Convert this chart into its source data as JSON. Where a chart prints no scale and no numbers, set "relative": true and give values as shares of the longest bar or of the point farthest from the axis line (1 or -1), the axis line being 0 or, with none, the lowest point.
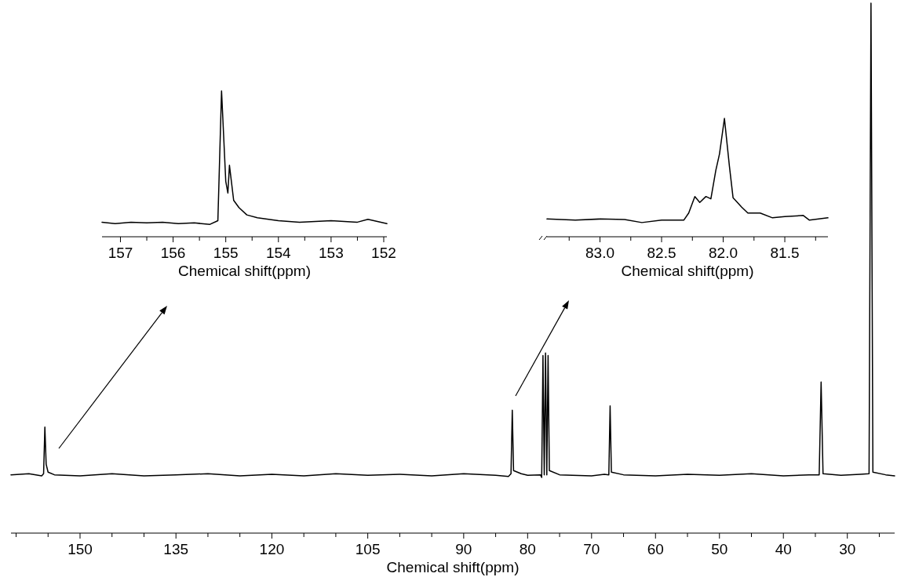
{
  "chart_data": [
    {
      "type": "line",
      "xlabel": "Chemical shift(ppm)",
      "relative": true,
      "tick_labels": "x",
      "x": [
        160.8,
        158,
        156,
        155.7,
        155.5,
        155.3,
        155,
        154,
        150,
        145,
        140,
        135,
        130,
        125,
        120,
        115,
        110,
        105,
        100,
        95,
        90,
        85,
        83,
        82.6,
        82.4,
        82.2,
        81,
        80,
        78,
        77.8,
        77.6,
        77.4,
        77.2,
        77.0,
        76.8,
        76.6,
        75,
        70,
        68,
        67.3,
        67.1,
        66.9,
        65,
        60,
        55,
        50,
        45,
        40,
        36,
        34.4,
        34.1,
        33.8,
        31,
        28,
        26.6,
        26.3,
        26.0,
        24,
        22.6
      ],
      "series": [
        {
          "color": "#000000",
          "values": [
            0.11,
            0.112,
            0.108,
            0.112,
            0.2,
            0.13,
            0.115,
            0.11,
            0.108,
            0.112,
            0.108,
            0.11,
            0.112,
            0.108,
            0.111,
            0.108,
            0.112,
            0.109,
            0.111,
            0.108,
            0.112,
            0.109,
            0.107,
            0.112,
            0.232,
            0.118,
            0.112,
            0.109,
            0.11,
            0.105,
            0.335,
            0.11,
            0.34,
            0.11,
            0.335,
            0.118,
            0.11,
            0.108,
            0.111,
            0.11,
            0.24,
            0.115,
            0.11,
            0.108,
            0.111,
            0.109,
            0.112,
            0.108,
            0.11,
            0.11,
            0.285,
            0.112,
            0.109,
            0.111,
            0.112,
            1,
            0.115,
            0.11,
            0.108
          ]
        }
      ],
      "xlim": [
        160.8,
        22.6
      ],
      "xticks": [
        {
          "value": 160,
          "label": null
        },
        {
          "value": 155,
          "label": null
        },
        150,
        {
          "value": 145,
          "label": null
        },
        {
          "value": 140,
          "label": null
        },
        135,
        {
          "value": 130,
          "label": null
        },
        {
          "value": 125,
          "label": null
        },
        120,
        {
          "value": 115,
          "label": null
        },
        {
          "value": 110,
          "label": null
        },
        105,
        {
          "value": 100,
          "label": null
        },
        {
          "value": 95,
          "label": null
        },
        90,
        {
          "value": 85,
          "label": null
        },
        80,
        {
          "value": 75,
          "label": null
        },
        70,
        {
          "value": 65,
          "label": null
        },
        60,
        {
          "value": 55,
          "label": null
        },
        50,
        {
          "value": 45,
          "label": null
        },
        40,
        {
          "value": 35,
          "label": null
        },
        30,
        {
          "value": 25,
          "label": null
        }
      ]
    },
    {
      "type": "line",
      "xlabel": "Chemical shift(ppm)",
      "relative": true,
      "tick_labels": "x",
      "x": [
        157.35,
        157.1,
        156.8,
        156.5,
        156.2,
        155.9,
        155.6,
        155.3,
        155.15,
        155.08,
        155.0,
        154.96,
        154.93,
        154.85,
        154.75,
        154.6,
        154.4,
        154.0,
        153.6,
        153.0,
        152.5,
        152.3,
        151.94
      ],
      "series": [
        {
          "color": "#000000",
          "values": [
            0.1,
            0.09,
            0.1,
            0.095,
            0.1,
            0.09,
            0.095,
            0.085,
            0.11,
            1.0,
            0.38,
            0.3,
            0.49,
            0.25,
            0.2,
            0.15,
            0.13,
            0.11,
            0.1,
            0.11,
            0.1,
            0.12,
            0.09
          ]
        }
      ],
      "xlim": [
        157.35,
        151.94
      ],
      "xticks": [
        157,
        {
          "value": 156.5,
          "label": null
        },
        156,
        {
          "value": 155.5,
          "label": null
        },
        155,
        {
          "value": 154.5,
          "label": null
        },
        154,
        {
          "value": 153.5,
          "label": null
        },
        153,
        {
          "value": 152.5,
          "label": null
        },
        152
      ]
    },
    {
      "type": "line",
      "xlabel": "Chemical shift(ppm)",
      "relative": true,
      "tick_labels": "x",
      "x": [
        83.43,
        83.2,
        83.0,
        82.8,
        82.66,
        82.5,
        82.32,
        82.28,
        82.23,
        82.19,
        82.14,
        82.1,
        82.06,
        82.03,
        81.99,
        81.95,
        81.92,
        81.85,
        81.8,
        81.7,
        81.6,
        81.5,
        81.35,
        81.3,
        81.15
      ],
      "series": [
        {
          "color": "#000000",
          "values": [
            0.15,
            0.14,
            0.15,
            0.145,
            0.12,
            0.14,
            0.14,
            0.2,
            0.34,
            0.29,
            0.34,
            0.32,
            0.56,
            0.7,
            1.0,
            0.6,
            0.33,
            0.25,
            0.2,
            0.2,
            0.16,
            0.17,
            0.18,
            0.14,
            0.16
          ]
        }
      ],
      "xlim": [
        83.43,
        81.15
      ],
      "xticks": [
        {
          "value": 83.25,
          "label": null
        },
        {
          "value": 83,
          "label": "83.0"
        },
        {
          "value": 82.75,
          "label": null
        },
        82.5,
        {
          "value": 82.25,
          "label": null
        },
        {
          "value": 82,
          "label": "82.0"
        },
        {
          "value": 81.75,
          "label": null
        },
        81.5,
        {
          "value": 81.25,
          "label": null
        }
      ]
    }
  ]
}
